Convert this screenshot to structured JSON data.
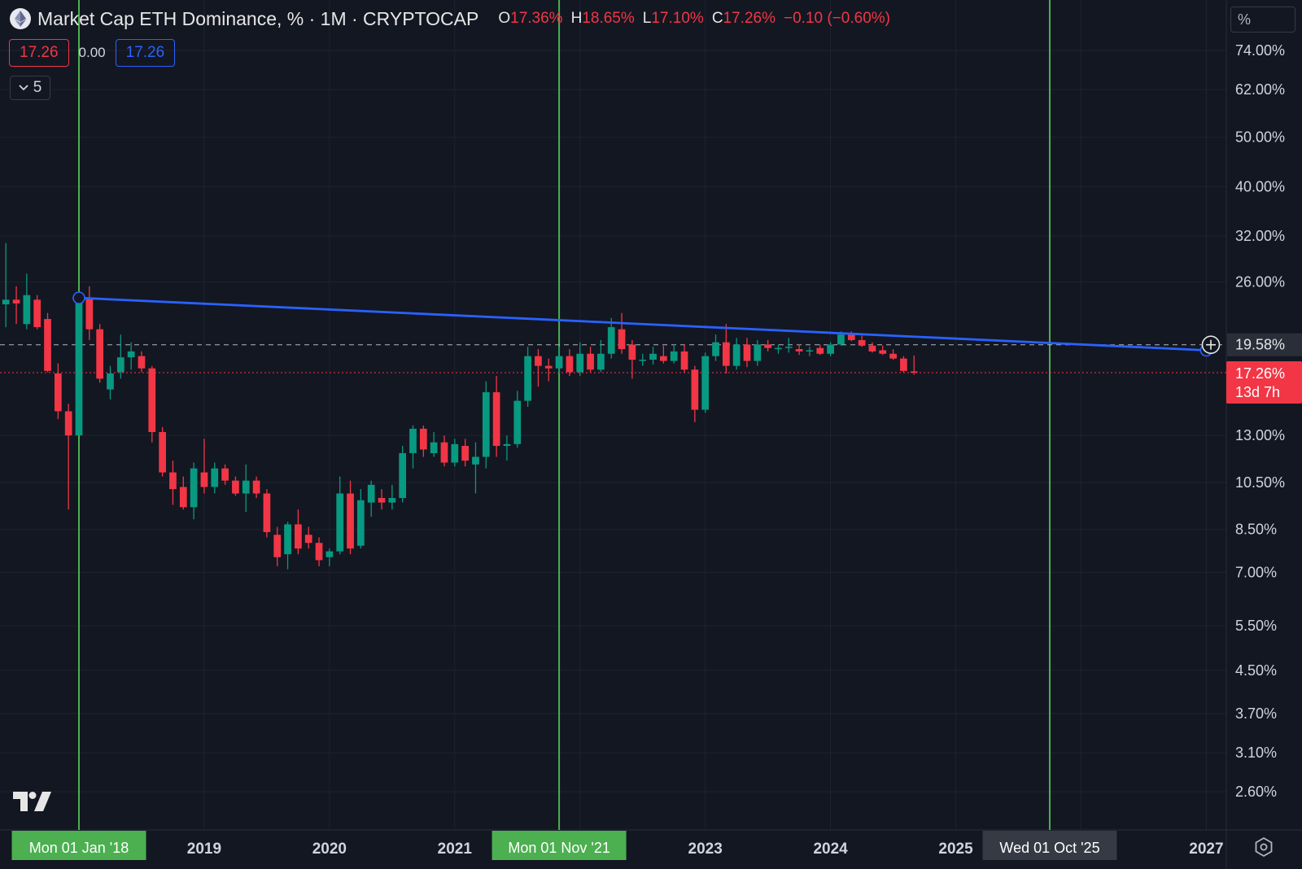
{
  "legend": {
    "title": "Market Cap ETH Dominance, % · 1M · CRYPTOCAP",
    "open_label": "O",
    "open": "17.36%",
    "high_label": "H",
    "high": "18.65%",
    "low_label": "L",
    "low": "17.10%",
    "close_label": "C",
    "close": "17.26%",
    "change": "−0.10 (−0.60%)"
  },
  "values_row": {
    "left": "17.26",
    "middle": "0.00",
    "right": "17.26"
  },
  "collapse": {
    "count": "5"
  },
  "axis_unit": "%",
  "colors": {
    "background": "#131722",
    "grid": "#1f2330",
    "up": "#089981",
    "down": "#f23645",
    "trendline": "#2962ff",
    "vline": "#4caf50",
    "axis_text": "#d1d4dc"
  },
  "chart_data": {
    "type": "candlestick",
    "scale": "log",
    "y_ticks": [
      "74.00%",
      "62.00%",
      "50.00%",
      "40.00%",
      "32.00%",
      "26.00%",
      "13.00%",
      "10.50%",
      "8.50%",
      "7.00%",
      "5.50%",
      "4.50%",
      "3.70%",
      "3.10%",
      "2.60%"
    ],
    "x_ticks": [
      "2019",
      "2020",
      "2021",
      "2023",
      "2024",
      "2025",
      "2027"
    ],
    "markers": [
      {
        "date": "Mon 01 Jan '18",
        "value": 24.2
      },
      {
        "date": "Mon 01 Nov '21",
        "value": 22.1
      },
      {
        "date": "Wed 01 Oct '25",
        "value": 19.58
      }
    ],
    "trendline": {
      "start": {
        "date": "2018-01",
        "value": 24.2
      },
      "end": {
        "date": "2027-01",
        "value": 19.1
      }
    },
    "dashed_level": {
      "value": 19.58,
      "label": "19.58%"
    },
    "current_price": {
      "value": 17.26,
      "label": "17.26%",
      "countdown": "13d 7h"
    },
    "candles": [
      {
        "date": "2017-06",
        "o": 23.5,
        "h": 31.0,
        "l": 21.2,
        "c": 24.0
      },
      {
        "date": "2017-07",
        "o": 24.0,
        "h": 25.5,
        "l": 21.5,
        "c": 23.6
      },
      {
        "date": "2017-08",
        "o": 21.5,
        "h": 27.0,
        "l": 21.0,
        "c": 24.5
      },
      {
        "date": "2017-09",
        "o": 24.0,
        "h": 24.5,
        "l": 21.0,
        "c": 21.2
      },
      {
        "date": "2017-10",
        "o": 22.0,
        "h": 22.6,
        "l": 17.3,
        "c": 17.4
      },
      {
        "date": "2017-11",
        "o": 17.2,
        "h": 18.0,
        "l": 14.0,
        "c": 14.5
      },
      {
        "date": "2017-12",
        "o": 14.5,
        "h": 15.0,
        "l": 9.3,
        "c": 13.0
      },
      {
        "date": "2018-01",
        "o": 13.0,
        "h": 24.2,
        "l": 13.0,
        "c": 24.2
      },
      {
        "date": "2018-02",
        "o": 24.2,
        "h": 25.5,
        "l": 20.0,
        "c": 21.0
      },
      {
        "date": "2018-03",
        "o": 21.0,
        "h": 21.5,
        "l": 16.5,
        "c": 16.8
      },
      {
        "date": "2018-04",
        "o": 16.0,
        "h": 17.8,
        "l": 15.3,
        "c": 17.2
      },
      {
        "date": "2018-05",
        "o": 17.3,
        "h": 20.5,
        "l": 16.8,
        "c": 18.5
      },
      {
        "date": "2018-06",
        "o": 18.5,
        "h": 19.8,
        "l": 17.5,
        "c": 19.0
      },
      {
        "date": "2018-07",
        "o": 18.6,
        "h": 19.0,
        "l": 17.3,
        "c": 17.6
      },
      {
        "date": "2018-08",
        "o": 17.6,
        "h": 17.8,
        "l": 12.6,
        "c": 13.2
      },
      {
        "date": "2018-09",
        "o": 13.2,
        "h": 13.5,
        "l": 10.8,
        "c": 11.0
      },
      {
        "date": "2018-10",
        "o": 11.0,
        "h": 11.6,
        "l": 9.5,
        "c": 10.2
      },
      {
        "date": "2018-11",
        "o": 10.3,
        "h": 10.8,
        "l": 9.3,
        "c": 9.4
      },
      {
        "date": "2018-12",
        "o": 9.4,
        "h": 11.5,
        "l": 8.9,
        "c": 11.2
      },
      {
        "date": "2019-01",
        "o": 11.0,
        "h": 12.8,
        "l": 10.0,
        "c": 10.3
      },
      {
        "date": "2019-02",
        "o": 10.3,
        "h": 11.5,
        "l": 10.0,
        "c": 11.2
      },
      {
        "date": "2019-03",
        "o": 11.2,
        "h": 11.4,
        "l": 10.4,
        "c": 10.6
      },
      {
        "date": "2019-04",
        "o": 10.6,
        "h": 10.8,
        "l": 9.9,
        "c": 10.0
      },
      {
        "date": "2019-05",
        "o": 10.0,
        "h": 11.4,
        "l": 9.2,
        "c": 10.6
      },
      {
        "date": "2019-06",
        "o": 10.6,
        "h": 10.8,
        "l": 9.8,
        "c": 10.0
      },
      {
        "date": "2019-07",
        "o": 10.0,
        "h": 10.2,
        "l": 8.2,
        "c": 8.4
      },
      {
        "date": "2019-08",
        "o": 8.3,
        "h": 8.6,
        "l": 7.2,
        "c": 7.5
      },
      {
        "date": "2019-09",
        "o": 7.6,
        "h": 8.8,
        "l": 7.1,
        "c": 8.7
      },
      {
        "date": "2019-10",
        "o": 8.7,
        "h": 9.3,
        "l": 7.6,
        "c": 7.8
      },
      {
        "date": "2019-11",
        "o": 8.3,
        "h": 8.6,
        "l": 7.8,
        "c": 8.0
      },
      {
        "date": "2019-12",
        "o": 8.0,
        "h": 8.2,
        "l": 7.2,
        "c": 7.4
      },
      {
        "date": "2020-01",
        "o": 7.5,
        "h": 7.8,
        "l": 7.2,
        "c": 7.7
      },
      {
        "date": "2020-02",
        "o": 7.7,
        "h": 10.8,
        "l": 7.6,
        "c": 10.0
      },
      {
        "date": "2020-03",
        "o": 10.0,
        "h": 10.6,
        "l": 7.6,
        "c": 7.8
      },
      {
        "date": "2020-04",
        "o": 7.9,
        "h": 10.2,
        "l": 7.8,
        "c": 9.7
      },
      {
        "date": "2020-05",
        "o": 9.6,
        "h": 10.6,
        "l": 9.0,
        "c": 10.4
      },
      {
        "date": "2020-06",
        "o": 9.8,
        "h": 10.2,
        "l": 9.3,
        "c": 9.6
      },
      {
        "date": "2020-07",
        "o": 9.6,
        "h": 10.4,
        "l": 9.3,
        "c": 9.8
      },
      {
        "date": "2020-08",
        "o": 9.8,
        "h": 12.4,
        "l": 9.6,
        "c": 12.0
      },
      {
        "date": "2020-09",
        "o": 12.0,
        "h": 13.6,
        "l": 11.2,
        "c": 13.4
      },
      {
        "date": "2020-10",
        "o": 13.4,
        "h": 13.6,
        "l": 11.8,
        "c": 12.2
      },
      {
        "date": "2020-11",
        "o": 12.0,
        "h": 13.2,
        "l": 11.8,
        "c": 12.6
      },
      {
        "date": "2020-12",
        "o": 12.6,
        "h": 13.0,
        "l": 11.3,
        "c": 11.5
      },
      {
        "date": "2021-01",
        "o": 11.5,
        "h": 12.8,
        "l": 11.3,
        "c": 12.5
      },
      {
        "date": "2021-02",
        "o": 12.4,
        "h": 12.8,
        "l": 11.3,
        "c": 11.6
      },
      {
        "date": "2021-03",
        "o": 11.4,
        "h": 12.6,
        "l": 10.0,
        "c": 11.8
      },
      {
        "date": "2021-04",
        "o": 11.8,
        "h": 16.6,
        "l": 11.2,
        "c": 15.8
      },
      {
        "date": "2021-05",
        "o": 15.8,
        "h": 17.0,
        "l": 11.8,
        "c": 12.4
      },
      {
        "date": "2021-06",
        "o": 12.4,
        "h": 13.0,
        "l": 11.6,
        "c": 12.5
      },
      {
        "date": "2021-07",
        "o": 12.5,
        "h": 15.9,
        "l": 12.3,
        "c": 15.2
      },
      {
        "date": "2021-08",
        "o": 15.2,
        "h": 19.4,
        "l": 14.8,
        "c": 18.6
      },
      {
        "date": "2021-09",
        "o": 18.6,
        "h": 19.2,
        "l": 16.2,
        "c": 17.8
      },
      {
        "date": "2021-10",
        "o": 17.8,
        "h": 18.4,
        "l": 16.6,
        "c": 17.6
      },
      {
        "date": "2021-11",
        "o": 17.6,
        "h": 19.4,
        "l": 17.2,
        "c": 18.6
      },
      {
        "date": "2021-12",
        "o": 18.6,
        "h": 19.2,
        "l": 17.0,
        "c": 17.3
      },
      {
        "date": "2022-01",
        "o": 17.3,
        "h": 19.8,
        "l": 17.0,
        "c": 18.8
      },
      {
        "date": "2022-02",
        "o": 18.8,
        "h": 19.4,
        "l": 17.3,
        "c": 17.5
      },
      {
        "date": "2022-03",
        "o": 17.5,
        "h": 20.0,
        "l": 17.3,
        "c": 18.8
      },
      {
        "date": "2022-04",
        "o": 18.8,
        "h": 22.1,
        "l": 18.4,
        "c": 21.2
      },
      {
        "date": "2022-05",
        "o": 21.0,
        "h": 22.6,
        "l": 18.8,
        "c": 19.2
      },
      {
        "date": "2022-06",
        "o": 19.6,
        "h": 20.0,
        "l": 16.8,
        "c": 18.3
      },
      {
        "date": "2022-07",
        "o": 18.2,
        "h": 18.8,
        "l": 17.8,
        "c": 18.3
      },
      {
        "date": "2022-08",
        "o": 18.3,
        "h": 19.4,
        "l": 17.9,
        "c": 18.8
      },
      {
        "date": "2022-09",
        "o": 18.6,
        "h": 19.5,
        "l": 18.0,
        "c": 18.2
      },
      {
        "date": "2022-10",
        "o": 18.2,
        "h": 19.6,
        "l": 18.0,
        "c": 19.0
      },
      {
        "date": "2022-11",
        "o": 19.0,
        "h": 19.6,
        "l": 17.3,
        "c": 17.5
      },
      {
        "date": "2022-12",
        "o": 17.5,
        "h": 17.8,
        "l": 13.8,
        "c": 14.6
      },
      {
        "date": "2023-01",
        "o": 14.6,
        "h": 18.9,
        "l": 14.4,
        "c": 18.6
      },
      {
        "date": "2023-02",
        "o": 18.6,
        "h": 20.5,
        "l": 18.2,
        "c": 19.8
      },
      {
        "date": "2023-03",
        "o": 19.8,
        "h": 21.5,
        "l": 17.2,
        "c": 17.8
      },
      {
        "date": "2023-04",
        "o": 17.8,
        "h": 20.2,
        "l": 17.5,
        "c": 19.6
      },
      {
        "date": "2023-05",
        "o": 19.6,
        "h": 20.2,
        "l": 17.7,
        "c": 18.2
      },
      {
        "date": "2023-06",
        "o": 18.2,
        "h": 20.0,
        "l": 17.8,
        "c": 19.6
      },
      {
        "date": "2023-07",
        "o": 19.6,
        "h": 20.0,
        "l": 19.0,
        "c": 19.3
      },
      {
        "date": "2023-08",
        "o": 19.2,
        "h": 19.6,
        "l": 18.8,
        "c": 19.3
      },
      {
        "date": "2023-09",
        "o": 19.3,
        "h": 20.2,
        "l": 18.9,
        "c": 19.4
      },
      {
        "date": "2023-10",
        "o": 19.2,
        "h": 19.6,
        "l": 18.7,
        "c": 19.0
      },
      {
        "date": "2023-11",
        "o": 19.0,
        "h": 19.4,
        "l": 18.6,
        "c": 19.1
      },
      {
        "date": "2023-12",
        "o": 19.3,
        "h": 19.6,
        "l": 18.7,
        "c": 18.8
      },
      {
        "date": "2024-01",
        "o": 18.8,
        "h": 19.8,
        "l": 18.6,
        "c": 19.6
      },
      {
        "date": "2024-02",
        "o": 19.6,
        "h": 20.8,
        "l": 19.5,
        "c": 20.5
      },
      {
        "date": "2024-03",
        "o": 20.5,
        "h": 20.8,
        "l": 19.9,
        "c": 20.0
      },
      {
        "date": "2024-04",
        "o": 20.0,
        "h": 20.4,
        "l": 19.4,
        "c": 19.5
      },
      {
        "date": "2024-05",
        "o": 19.5,
        "h": 19.8,
        "l": 18.9,
        "c": 19.0
      },
      {
        "date": "2024-06",
        "o": 19.1,
        "h": 19.5,
        "l": 18.7,
        "c": 18.8
      },
      {
        "date": "2024-07",
        "o": 18.8,
        "h": 19.2,
        "l": 18.3,
        "c": 18.4
      },
      {
        "date": "2024-08",
        "o": 18.4,
        "h": 18.6,
        "l": 17.3,
        "c": 17.4
      },
      {
        "date": "2024-09",
        "o": 17.36,
        "h": 18.65,
        "l": 17.1,
        "c": 17.26
      }
    ]
  }
}
